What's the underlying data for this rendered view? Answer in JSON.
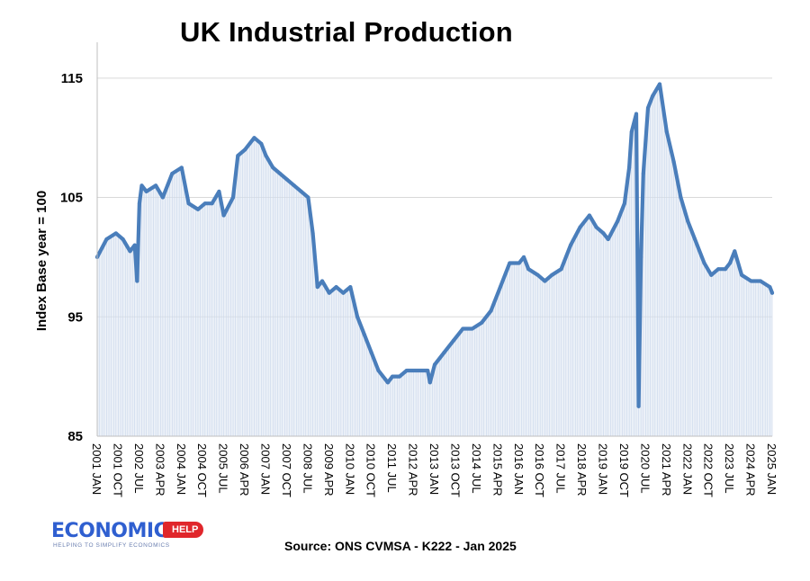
{
  "chart_data": {
    "type": "area",
    "title": "UK Industrial Production",
    "ylabel": "Index Base year = 100",
    "xlabel": "",
    "ylim": [
      85,
      118
    ],
    "yticks": [
      85,
      95,
      105,
      115
    ],
    "grid": "horizontal",
    "line_color": "#4a7ebb",
    "fill_color": "#dce6f2",
    "x_tick_labels": [
      "2001 JAN",
      "2001 OCT",
      "2002 JUL",
      "2003 APR",
      "2004 JAN",
      "2004 OCT",
      "2005 JUL",
      "2006 APR",
      "2007 JAN",
      "2007 OCT",
      "2008 JUL",
      "2009 APR",
      "2010 JAN",
      "2010 OCT",
      "2011 JUL",
      "2012 APR",
      "2013 JAN",
      "2013 OCT",
      "2014 JUL",
      "2015 APR",
      "2016 JAN",
      "2016 OCT",
      "2017 JUL",
      "2018 APR",
      "2019 JAN",
      "2019 OCT",
      "2020 JUL",
      "2021 APR",
      "2022 JAN",
      "2022 OCT",
      "2023 JUL",
      "2024 APR",
      "2025 JAN"
    ],
    "series": [
      {
        "x": [
          "2001-01",
          "2001-05",
          "2001-09",
          "2001-12",
          "2002-03",
          "2002-05",
          "2002-06",
          "2002-07",
          "2002-08",
          "2002-10",
          "2003-02",
          "2003-05",
          "2003-09",
          "2004-01",
          "2004-04",
          "2004-08",
          "2004-11",
          "2005-02",
          "2005-05",
          "2005-07",
          "2005-11",
          "2006-01",
          "2006-04",
          "2006-08",
          "2006-11",
          "2007-01",
          "2007-04",
          "2007-07",
          "2007-10",
          "2008-01",
          "2008-04",
          "2008-07",
          "2008-09",
          "2008-11",
          "2009-01",
          "2009-04",
          "2009-07",
          "2009-10",
          "2010-01",
          "2010-04",
          "2010-07",
          "2010-10",
          "2011-01",
          "2011-05",
          "2011-07",
          "2011-10",
          "2012-01",
          "2012-04",
          "2012-07",
          "2012-10",
          "2012-11",
          "2013-01",
          "2013-05",
          "2013-09",
          "2014-01",
          "2014-05",
          "2014-09",
          "2015-01",
          "2015-05",
          "2015-09",
          "2016-01",
          "2016-03",
          "2016-05",
          "2016-09",
          "2016-12",
          "2017-03",
          "2017-07",
          "2017-11",
          "2018-03",
          "2018-07",
          "2018-10",
          "2019-01",
          "2019-03",
          "2019-07",
          "2019-10",
          "2019-12",
          "2020-01",
          "2020-03",
          "2020-04",
          "2020-05",
          "2020-06",
          "2020-08",
          "2020-10",
          "2021-01",
          "2021-04",
          "2021-07",
          "2021-10",
          "2022-01",
          "2022-04",
          "2022-08",
          "2022-11",
          "2023-02",
          "2023-05",
          "2023-07",
          "2023-09",
          "2023-12",
          "2024-04",
          "2024-08",
          "2024-12",
          "2025-01"
        ],
        "values": [
          100.0,
          101.5,
          102.0,
          101.5,
          100.5,
          101.0,
          98.0,
          104.5,
          106.0,
          105.5,
          106.0,
          105.0,
          107.0,
          107.5,
          104.5,
          104.0,
          104.5,
          104.5,
          105.5,
          103.5,
          105.0,
          108.5,
          109.0,
          110.0,
          109.5,
          108.5,
          107.5,
          107.0,
          106.5,
          106.0,
          105.5,
          105.0,
          102.0,
          97.5,
          98.0,
          97.0,
          97.5,
          97.0,
          97.5,
          95.0,
          93.5,
          92.0,
          90.5,
          89.5,
          90.0,
          90.0,
          90.5,
          90.5,
          90.5,
          90.5,
          89.5,
          91.0,
          92.0,
          93.0,
          94.0,
          94.0,
          94.5,
          95.5,
          97.5,
          99.5,
          99.5,
          100.0,
          99.0,
          98.5,
          98.0,
          98.5,
          99.0,
          101.0,
          102.5,
          103.5,
          102.5,
          102.0,
          101.5,
          103.0,
          104.5,
          107.5,
          110.5,
          112.0,
          87.5,
          100.0,
          107.0,
          112.5,
          113.5,
          114.5,
          110.5,
          108.0,
          105.0,
          103.0,
          101.5,
          99.5,
          98.5,
          99.0,
          99.0,
          99.5,
          100.5,
          98.5,
          98.0,
          98.0,
          97.5,
          97.0
        ]
      }
    ]
  },
  "source_note": "Source: ONS CVMSA - K222 - Jan 2025",
  "logo": {
    "word": "ECONOMICS",
    "tag": "HELP",
    "subtitle": "HELPING TO SIMPLIFY ECONOMICS"
  }
}
